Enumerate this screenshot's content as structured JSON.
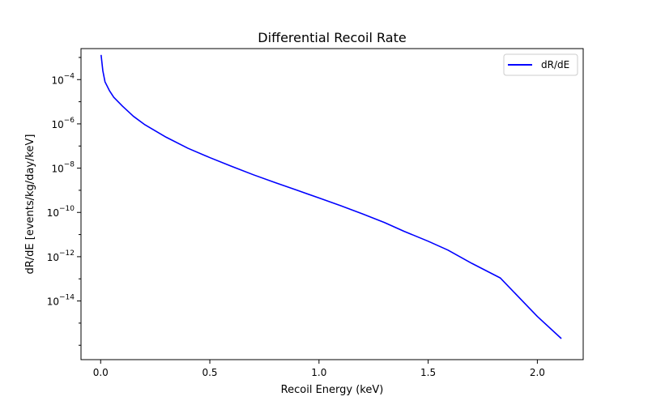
{
  "chart_data": {
    "type": "line",
    "title": "Differential Recoil Rate",
    "xlabel": "Recoil Energy (keV)",
    "ylabel": "dR/dE [events/kg/day/keV]",
    "xlim": [
      -0.09,
      2.21
    ],
    "ylim_log10": [
      -16.65,
      -2.6
    ],
    "y_scale": "log",
    "grid": false,
    "legend_position": "top-right",
    "line_color": "#0000ff",
    "x_ticks": [
      {
        "value": 0.0,
        "label": "0.0"
      },
      {
        "value": 0.5,
        "label": "0.5"
      },
      {
        "value": 1.0,
        "label": "1.0"
      },
      {
        "value": 1.5,
        "label": "1.5"
      },
      {
        "value": 2.0,
        "label": "2.0"
      }
    ],
    "y_ticks": [
      {
        "exp": -4,
        "base": "10",
        "exponent": "−4"
      },
      {
        "exp": -6,
        "base": "10",
        "exponent": "−6"
      },
      {
        "exp": -8,
        "base": "10",
        "exponent": "−8"
      },
      {
        "exp": -10,
        "base": "10",
        "exponent": "−10"
      },
      {
        "exp": -12,
        "base": "10",
        "exponent": "−12"
      },
      {
        "exp": -14,
        "base": "10",
        "exponent": "−14"
      }
    ],
    "series": [
      {
        "name": "dR/dE",
        "x": [
          0.002,
          0.01,
          0.02,
          0.04,
          0.06,
          0.1,
          0.15,
          0.2,
          0.3,
          0.4,
          0.5,
          0.6,
          0.7,
          0.8,
          0.9,
          1.0,
          1.1,
          1.2,
          1.3,
          1.39,
          1.5,
          1.59,
          1.7,
          1.83,
          2.0,
          2.11
        ],
        "y": [
          0.0013,
          0.00025,
          7.9e-05,
          3.2e-05,
          1.6e-05,
          6.3e-06,
          2.2e-06,
          9.5e-07,
          2.5e-07,
          7.9e-08,
          3e-08,
          1.2e-08,
          5e-09,
          2.2e-09,
          1e-09,
          4.5e-10,
          2e-10,
          8.5e-11,
          3.5e-11,
          1.4e-11,
          5e-12,
          2e-12,
          5e-13,
          1.1e-13,
          2e-15,
          2e-16
        ]
      }
    ]
  }
}
